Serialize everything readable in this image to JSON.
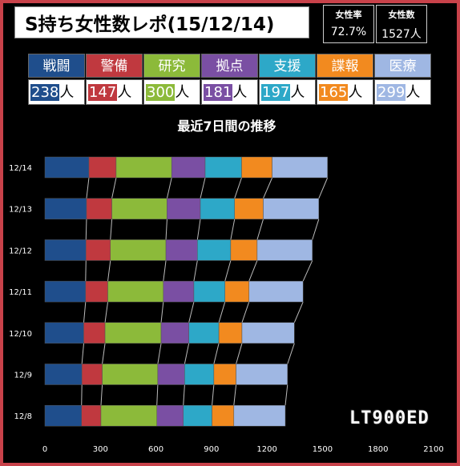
{
  "header": {
    "title": "S持ち女性数レポ(15/12/14)",
    "stats": [
      {
        "label": "女性率",
        "value": "72.7%"
      },
      {
        "label": "女性数",
        "value": "1527人"
      }
    ]
  },
  "categories": [
    {
      "name": "戦闘",
      "count": "238",
      "unit": "人",
      "color": "#1f4e8c"
    },
    {
      "name": "警備",
      "count": "147",
      "unit": "人",
      "color": "#c0393f"
    },
    {
      "name": "研究",
      "count": "300",
      "unit": "人",
      "color": "#8cba3a"
    },
    {
      "name": "拠点",
      "count": "181",
      "unit": "人",
      "color": "#7a4fa3"
    },
    {
      "name": "支援",
      "count": "197",
      "unit": "人",
      "color": "#2da8c8"
    },
    {
      "name": "諜報",
      "count": "165",
      "unit": "人",
      "color": "#f28a1f"
    },
    {
      "name": "医療",
      "count": "299",
      "unit": "人",
      "color": "#9fb7e3"
    }
  ],
  "watermark": "LT900ED",
  "chart_data": {
    "type": "bar",
    "orientation": "horizontal",
    "stacked": true,
    "title": "最近7日間の推移",
    "categories": [
      "12/14",
      "12/13",
      "12/12",
      "12/11",
      "12/10",
      "12/9",
      "12/8"
    ],
    "series": [
      {
        "name": "戦闘",
        "values": [
          238,
          225,
          222,
          220,
          210,
          200,
          198
        ]
      },
      {
        "name": "警備",
        "values": [
          147,
          137,
          132,
          120,
          115,
          110,
          105
        ]
      },
      {
        "name": "研究",
        "values": [
          300,
          298,
          300,
          300,
          303,
          300,
          302
        ]
      },
      {
        "name": "拠点",
        "values": [
          181,
          180,
          170,
          165,
          150,
          145,
          143
        ]
      },
      {
        "name": "支援",
        "values": [
          197,
          185,
          180,
          168,
          162,
          158,
          155
        ]
      },
      {
        "name": "諜報",
        "values": [
          165,
          155,
          143,
          130,
          125,
          120,
          118
        ]
      },
      {
        "name": "医療",
        "values": [
          299,
          300,
          298,
          292,
          283,
          278,
          278
        ]
      }
    ],
    "xlim": [
      0,
      2100
    ],
    "xticks": [
      "0",
      "300",
      "600",
      "900",
      "1200",
      "1500",
      "1800",
      "2100"
    ],
    "series_lines": true,
    "grid": false,
    "legend": "none"
  }
}
